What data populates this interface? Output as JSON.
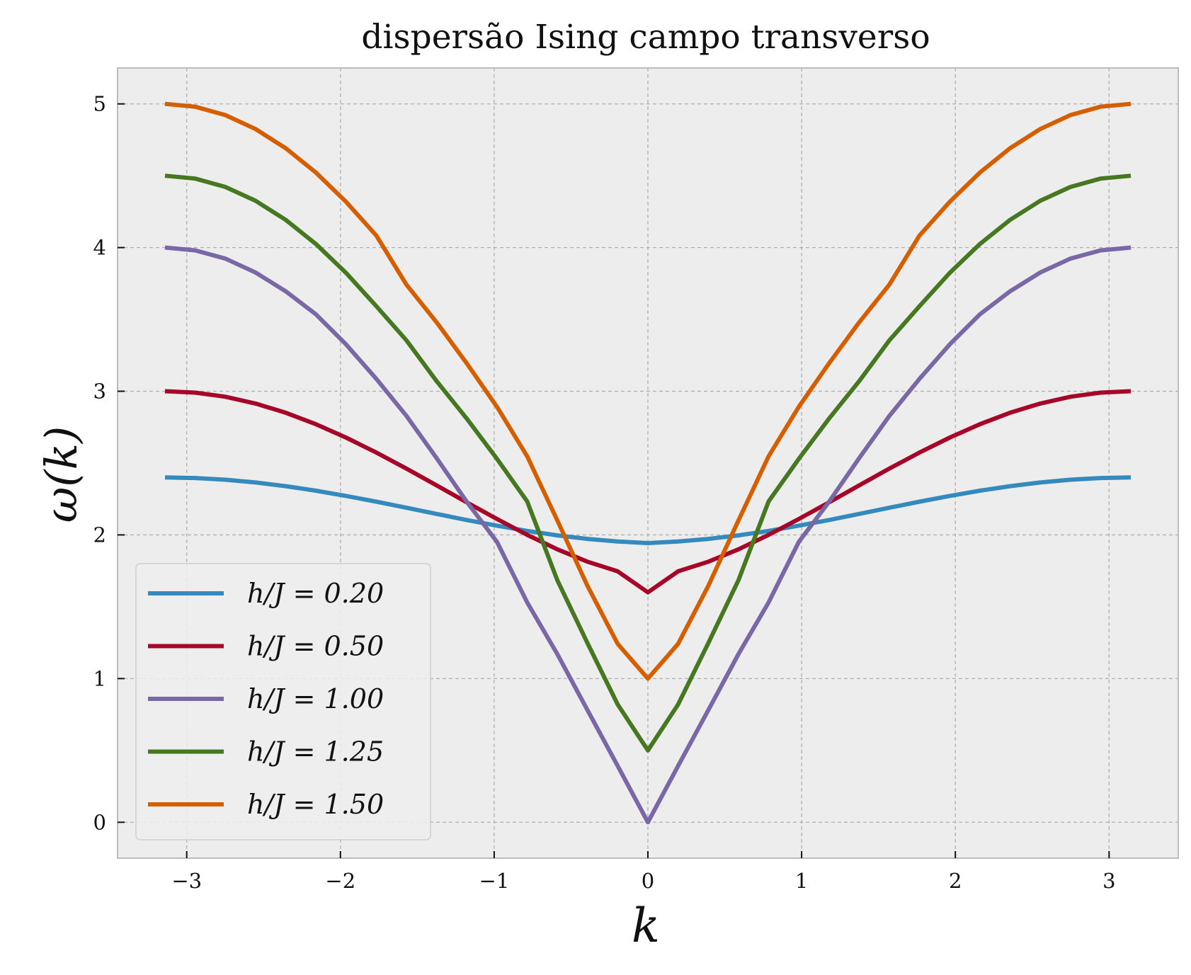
{
  "chart_data": {
    "type": "line",
    "title": "dispersão Ising campo transverso",
    "xlabel": "k",
    "ylabel": "ω(k)",
    "xlim": [
      -3.45,
      3.45
    ],
    "ylim": [
      -0.25,
      5.25
    ],
    "xticks": [
      -3,
      -2,
      -1,
      0,
      1,
      2,
      3
    ],
    "xtick_labels": [
      "−3",
      "−2",
      "−1",
      "0",
      "1",
      "2",
      "3"
    ],
    "yticks": [
      0,
      1,
      2,
      3,
      4,
      5
    ],
    "ytick_labels": [
      "0",
      "1",
      "2",
      "3",
      "4",
      "5"
    ],
    "grid": true,
    "legend_position": "lower-left",
    "plot_background": "#ededed",
    "x": [
      -3.1416,
      -2.9452,
      -2.7489,
      -2.5525,
      -2.3562,
      -2.1598,
      -1.9635,
      -1.7671,
      -1.5708,
      -1.3744,
      -1.1781,
      -0.9817,
      -0.7854,
      -0.589,
      -0.3927,
      -0.1963,
      0,
      0.1963,
      0.3927,
      0.589,
      0.7854,
      0.9817,
      1.1781,
      1.3744,
      1.5708,
      1.7671,
      1.9635,
      2.1598,
      2.3562,
      2.5525,
      2.7489,
      2.9452,
      3.1416
    ],
    "series": [
      {
        "name": "h/J = 0.20",
        "color": "#348abd",
        "values": [
          2.4,
          2.396,
          2.3843,
          2.3652,
          2.3394,
          2.3077,
          2.2713,
          2.2313,
          2.1891,
          2.1462,
          2.104,
          2.0641,
          2.0279,
          1.9968,
          1.972,
          1.9542,
          1.9433,
          1.9542,
          1.972,
          1.9968,
          2.0279,
          2.0641,
          2.104,
          2.1462,
          2.1891,
          2.2313,
          2.2713,
          2.3077,
          2.3394,
          2.3652,
          2.3843,
          2.396,
          2.4
        ]
      },
      {
        "name": "h/J = 0.50",
        "color": "#a60628",
        "values": [
          3.0,
          2.9903,
          2.9616,
          2.9145,
          2.8503,
          2.7705,
          2.6774,
          2.5735,
          2.4616,
          2.3449,
          2.2267,
          2.1107,
          2.0004,
          1.8999,
          1.8136,
          1.7463,
          1.6,
          1.7463,
          1.8136,
          1.8999,
          2.0004,
          2.1107,
          2.2267,
          2.3449,
          2.4616,
          2.5735,
          2.6774,
          2.7705,
          2.8503,
          2.9145,
          2.9616,
          2.9903,
          3.0
        ]
      },
      {
        "name": "h/J = 1.00",
        "color": "#7a68a6",
        "values": [
          4.0,
          3.9807,
          3.9231,
          3.8268,
          3.6955,
          3.5355,
          3.3259,
          3.0866,
          2.8284,
          2.5346,
          2.2304,
          1.9509,
          1.5307,
          1.1705,
          0.7804,
          0.3918,
          0.0,
          0.3918,
          0.7804,
          1.1705,
          1.5307,
          1.9509,
          2.2304,
          2.5346,
          2.8284,
          3.0866,
          3.3259,
          3.5355,
          3.6955,
          3.8268,
          3.9231,
          3.9807,
          4.0
        ]
      },
      {
        "name": "h/J = 1.25",
        "color": "#467821",
        "values": [
          4.5,
          4.4804,
          4.4221,
          4.3258,
          4.1928,
          4.0246,
          3.8235,
          3.5921,
          3.3541,
          3.0703,
          2.8095,
          2.5289,
          2.2336,
          1.6848,
          1.2467,
          0.8193,
          0.5,
          0.8193,
          1.2467,
          1.6848,
          2.2336,
          2.5289,
          2.8095,
          3.0703,
          3.3541,
          3.5921,
          3.8235,
          4.0246,
          4.1928,
          4.3258,
          4.4221,
          4.4804,
          4.5
        ]
      },
      {
        "name": "h/J = 1.50",
        "color": "#d55e00",
        "values": [
          5.0,
          4.9804,
          4.9221,
          4.8254,
          4.6915,
          4.5219,
          4.3186,
          4.0839,
          3.7417,
          3.4796,
          3.1937,
          2.8911,
          2.5473,
          2.1007,
          1.6451,
          1.2413,
          1.0,
          1.2413,
          1.6451,
          2.1007,
          2.5473,
          2.8911,
          3.1937,
          3.4796,
          3.7417,
          4.0839,
          4.3186,
          4.5219,
          4.6915,
          4.8254,
          4.9221,
          4.9804,
          5.0
        ]
      }
    ]
  }
}
